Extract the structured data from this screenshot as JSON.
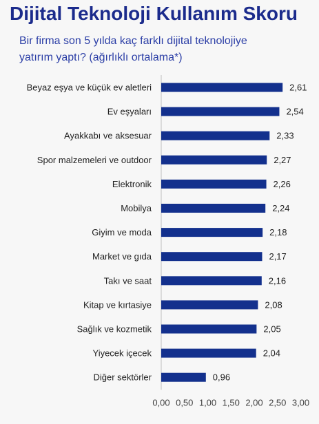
{
  "title": "Dijital Teknoloji Kullanım Skoru",
  "subtitle_line1": "Bir firma son 5 yılda kaç farklı dijital teknolojiye",
  "subtitle_line2": "yatırım yaptı? (ağırlıklı ortalama*)",
  "colors": {
    "title": "#1b2b8c",
    "subtitle": "#2b3ea6",
    "bar": "#13308d",
    "label_text": "#1f1f1f",
    "tick_text": "#404040",
    "axis_line": "#bfbfbf",
    "background": "#f7f7f7"
  },
  "chart_data": {
    "type": "bar",
    "orientation": "horizontal",
    "categories": [
      "Beyaz eşya ve küçük ev aletleri",
      "Ev eşyaları",
      "Ayakkabı ve aksesuar",
      "Spor malzemeleri ve outdoor",
      "Elektronik",
      "Mobilya",
      "Giyim ve moda",
      "Market ve gıda",
      "Takı ve saat",
      "Kitap ve kırtasiye",
      "Sağlık ve kozmetik",
      "Yiyecek içecek",
      "Diğer sektörler"
    ],
    "values": [
      2.61,
      2.54,
      2.33,
      2.27,
      2.26,
      2.24,
      2.18,
      2.17,
      2.16,
      2.08,
      2.05,
      2.04,
      0.96
    ],
    "value_labels": [
      "2,61",
      "2,54",
      "2,33",
      "2,27",
      "2,26",
      "2,24",
      "2,18",
      "2,17",
      "2,16",
      "2,08",
      "2,05",
      "2,04",
      "0,96"
    ],
    "xlim": [
      0,
      3
    ],
    "x_ticks": [
      0,
      0.5,
      1,
      1.5,
      2,
      2.5,
      3
    ],
    "x_tick_labels": [
      "0,00",
      "0,50",
      "1,00",
      "1,50",
      "2,00",
      "2,50",
      "3,00"
    ],
    "grid": false,
    "legend": "none"
  }
}
